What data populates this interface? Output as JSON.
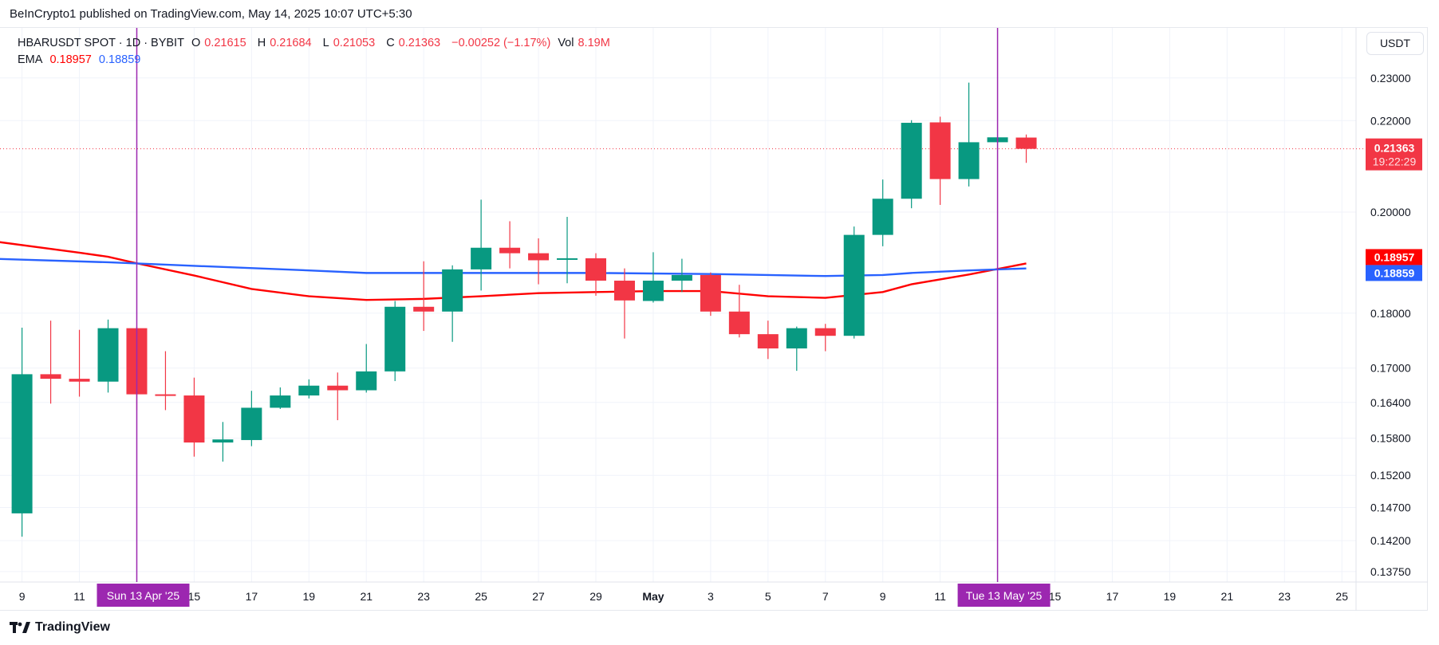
{
  "published": "BeInCrypto1 published on TradingView.com, May 14, 2025 10:07 UTC+5:30",
  "legend": {
    "symbol": "HBARUSDT SPOT · 1D · BYBIT",
    "o_label": "O",
    "o": "0.21615",
    "h_label": "H",
    "h": "0.21684",
    "l_label": "L",
    "l": "0.21053",
    "c_label": "C",
    "c": "0.21363",
    "change": "−0.00252 (−1.17%)",
    "vol_label": "Vol",
    "vol": "8.19M",
    "ema_label": "EMA",
    "ema1": "0.18957",
    "ema2": "0.18859"
  },
  "currency_button": "USDT",
  "brand": "TradingView",
  "colors": {
    "up": "#089981",
    "down": "#f23645",
    "ema1": "#ff0000",
    "ema2": "#2962ff",
    "marker": "#9c27b0",
    "grid": "#f0f3fa"
  },
  "chart_data": {
    "type": "candlestick",
    "yscale": "log",
    "ylim": [
      0.1375,
      0.23
    ],
    "grid": true,
    "y_ticks": [
      "0.23000",
      "0.22000",
      "0.20000",
      "0.18000",
      "0.17000",
      "0.16400",
      "0.15800",
      "0.15200",
      "0.14700",
      "0.14200",
      "0.13750"
    ],
    "x_ticks": [
      {
        "date": "2025-04-09",
        "label": "9"
      },
      {
        "date": "2025-04-11",
        "label": "11"
      },
      {
        "date": "2025-04-15",
        "label": "15"
      },
      {
        "date": "2025-04-17",
        "label": "17"
      },
      {
        "date": "2025-04-19",
        "label": "19"
      },
      {
        "date": "2025-04-21",
        "label": "21"
      },
      {
        "date": "2025-04-23",
        "label": "23"
      },
      {
        "date": "2025-04-25",
        "label": "25"
      },
      {
        "date": "2025-04-27",
        "label": "27"
      },
      {
        "date": "2025-04-29",
        "label": "29"
      },
      {
        "date": "2025-05-01",
        "label": "May"
      },
      {
        "date": "2025-05-03",
        "label": "3"
      },
      {
        "date": "2025-05-05",
        "label": "5"
      },
      {
        "date": "2025-05-07",
        "label": "7"
      },
      {
        "date": "2025-05-09",
        "label": "9"
      },
      {
        "date": "2025-05-11",
        "label": "11"
      },
      {
        "date": "2025-05-15",
        "label": "15"
      },
      {
        "date": "2025-05-17",
        "label": "17"
      },
      {
        "date": "2025-05-19",
        "label": "19"
      },
      {
        "date": "2025-05-21",
        "label": "21"
      },
      {
        "date": "2025-05-23",
        "label": "23"
      },
      {
        "date": "2025-05-25",
        "label": "25"
      }
    ],
    "markers": [
      {
        "date": "2025-04-13",
        "label": "Sun 13 Apr '25"
      },
      {
        "date": "2025-05-13",
        "label": "Tue 13 May '25"
      }
    ],
    "last_price": {
      "value": 0.21363,
      "label": "0.21363",
      "countdown": "19:22:29"
    },
    "ema_tags": [
      {
        "value": 0.18957,
        "label": "0.18957"
      },
      {
        "value": 0.18859,
        "label": "0.18859"
      }
    ],
    "candles": [
      {
        "date": "2025-04-09",
        "o": 0.1461,
        "h": 0.1773,
        "l": 0.1426,
        "c": 0.1689
      },
      {
        "date": "2025-04-10",
        "o": 0.1689,
        "h": 0.1786,
        "l": 0.1638,
        "c": 0.1681
      },
      {
        "date": "2025-04-11",
        "o": 0.1681,
        "h": 0.1769,
        "l": 0.165,
        "c": 0.1676
      },
      {
        "date": "2025-04-12",
        "o": 0.1676,
        "h": 0.1788,
        "l": 0.1657,
        "c": 0.1772
      },
      {
        "date": "2025-04-13",
        "o": 0.1772,
        "h": 0.1775,
        "l": 0.1627,
        "c": 0.1654
      },
      {
        "date": "2025-04-14",
        "o": 0.1654,
        "h": 0.173,
        "l": 0.1627,
        "c": 0.1652
      },
      {
        "date": "2025-04-15",
        "o": 0.1652,
        "h": 0.1683,
        "l": 0.155,
        "c": 0.1573
      },
      {
        "date": "2025-04-16",
        "o": 0.1573,
        "h": 0.1607,
        "l": 0.1542,
        "c": 0.1578
      },
      {
        "date": "2025-04-17",
        "o": 0.1577,
        "h": 0.166,
        "l": 0.1567,
        "c": 0.1631
      },
      {
        "date": "2025-04-18",
        "o": 0.1631,
        "h": 0.1666,
        "l": 0.1629,
        "c": 0.1652
      },
      {
        "date": "2025-04-19",
        "o": 0.1652,
        "h": 0.168,
        "l": 0.1647,
        "c": 0.1669
      },
      {
        "date": "2025-04-20",
        "o": 0.1669,
        "h": 0.1692,
        "l": 0.161,
        "c": 0.1661
      },
      {
        "date": "2025-04-21",
        "o": 0.1661,
        "h": 0.1743,
        "l": 0.1657,
        "c": 0.1694
      },
      {
        "date": "2025-04-22",
        "o": 0.1694,
        "h": 0.1823,
        "l": 0.1677,
        "c": 0.1812
      },
      {
        "date": "2025-04-23",
        "o": 0.1812,
        "h": 0.19,
        "l": 0.1767,
        "c": 0.1803
      },
      {
        "date": "2025-04-24",
        "o": 0.1803,
        "h": 0.1892,
        "l": 0.1747,
        "c": 0.1884
      },
      {
        "date": "2025-04-25",
        "o": 0.1884,
        "h": 0.2026,
        "l": 0.1843,
        "c": 0.1927
      },
      {
        "date": "2025-04-26",
        "o": 0.1927,
        "h": 0.1981,
        "l": 0.1886,
        "c": 0.1916
      },
      {
        "date": "2025-04-27",
        "o": 0.1916,
        "h": 0.1946,
        "l": 0.1855,
        "c": 0.1902
      },
      {
        "date": "2025-04-28",
        "o": 0.1903,
        "h": 0.199,
        "l": 0.1857,
        "c": 0.1906
      },
      {
        "date": "2025-04-29",
        "o": 0.1906,
        "h": 0.1916,
        "l": 0.1833,
        "c": 0.1862
      },
      {
        "date": "2025-04-30",
        "o": 0.1862,
        "h": 0.1886,
        "l": 0.1753,
        "c": 0.1824
      },
      {
        "date": "2025-05-01",
        "o": 0.1823,
        "h": 0.1918,
        "l": 0.182,
        "c": 0.1862
      },
      {
        "date": "2025-05-02",
        "o": 0.1862,
        "h": 0.1905,
        "l": 0.184,
        "c": 0.1873
      },
      {
        "date": "2025-05-03",
        "o": 0.1873,
        "h": 0.1878,
        "l": 0.1795,
        "c": 0.1803
      },
      {
        "date": "2025-05-04",
        "o": 0.1803,
        "h": 0.1854,
        "l": 0.1755,
        "c": 0.1761
      },
      {
        "date": "2025-05-05",
        "o": 0.1761,
        "h": 0.1786,
        "l": 0.1716,
        "c": 0.1735
      },
      {
        "date": "2025-05-06",
        "o": 0.1735,
        "h": 0.1775,
        "l": 0.1695,
        "c": 0.1772
      },
      {
        "date": "2025-05-07",
        "o": 0.1772,
        "h": 0.178,
        "l": 0.173,
        "c": 0.1758
      },
      {
        "date": "2025-05-08",
        "o": 0.1758,
        "h": 0.197,
        "l": 0.1753,
        "c": 0.1953
      },
      {
        "date": "2025-05-09",
        "o": 0.1953,
        "h": 0.2069,
        "l": 0.193,
        "c": 0.2028
      },
      {
        "date": "2025-05-10",
        "o": 0.2028,
        "h": 0.2201,
        "l": 0.2008,
        "c": 0.2195
      },
      {
        "date": "2025-05-11",
        "o": 0.2196,
        "h": 0.2209,
        "l": 0.2015,
        "c": 0.207
      },
      {
        "date": "2025-05-12",
        "o": 0.207,
        "h": 0.2289,
        "l": 0.2054,
        "c": 0.2151
      },
      {
        "date": "2025-05-13",
        "o": 0.2151,
        "h": 0.2163,
        "l": 0.215,
        "c": 0.2162
      },
      {
        "date": "2025-05-14",
        "o": 0.21615,
        "h": 0.21684,
        "l": 0.21053,
        "c": 0.21363
      }
    ],
    "ema_series": [
      {
        "values": [
          {
            "date": "2025-04-08",
            "v": 0.194
          },
          {
            "date": "2025-04-11",
            "v": 0.1917
          },
          {
            "date": "2025-04-12",
            "v": 0.1909
          },
          {
            "date": "2025-04-13",
            "v": 0.1896
          },
          {
            "date": "2025-04-15",
            "v": 0.1872
          },
          {
            "date": "2025-04-17",
            "v": 0.1846
          },
          {
            "date": "2025-04-19",
            "v": 0.1832
          },
          {
            "date": "2025-04-21",
            "v": 0.1825
          },
          {
            "date": "2025-04-23",
            "v": 0.1827
          },
          {
            "date": "2025-04-25",
            "v": 0.1832
          },
          {
            "date": "2025-04-27",
            "v": 0.1838
          },
          {
            "date": "2025-04-29",
            "v": 0.184
          },
          {
            "date": "2025-05-01",
            "v": 0.1842
          },
          {
            "date": "2025-05-03",
            "v": 0.1842
          },
          {
            "date": "2025-05-05",
            "v": 0.1832
          },
          {
            "date": "2025-05-07",
            "v": 0.1829
          },
          {
            "date": "2025-05-09",
            "v": 0.184
          },
          {
            "date": "2025-05-10",
            "v": 0.1855
          },
          {
            "date": "2025-05-12",
            "v": 0.1874
          },
          {
            "date": "2025-05-14",
            "v": 0.18957
          }
        ]
      },
      {
        "values": [
          {
            "date": "2025-04-08",
            "v": 0.1905
          },
          {
            "date": "2025-04-12",
            "v": 0.1898
          },
          {
            "date": "2025-04-15",
            "v": 0.1891
          },
          {
            "date": "2025-04-19",
            "v": 0.1882
          },
          {
            "date": "2025-04-21",
            "v": 0.1877
          },
          {
            "date": "2025-04-25",
            "v": 0.1877
          },
          {
            "date": "2025-04-29",
            "v": 0.1877
          },
          {
            "date": "2025-05-03",
            "v": 0.1875
          },
          {
            "date": "2025-05-05",
            "v": 0.1873
          },
          {
            "date": "2025-05-07",
            "v": 0.1871
          },
          {
            "date": "2025-05-09",
            "v": 0.1873
          },
          {
            "date": "2025-05-10",
            "v": 0.1877
          },
          {
            "date": "2025-05-12",
            "v": 0.1882
          },
          {
            "date": "2025-05-14",
            "v": 0.18859
          }
        ]
      }
    ]
  }
}
